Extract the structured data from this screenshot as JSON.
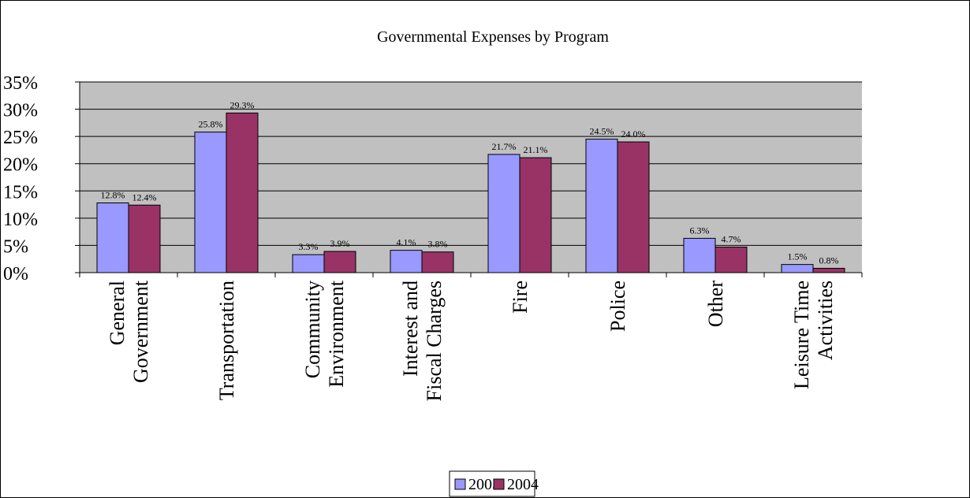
{
  "chart_data": {
    "type": "bar",
    "title": "Governmental Expenses by Program",
    "xlabel": "",
    "ylabel": "",
    "ylim": [
      0,
      35
    ],
    "y_ticks": [
      "0%",
      "5%",
      "10%",
      "15%",
      "20%",
      "25%",
      "30%",
      "35%"
    ],
    "categories": [
      [
        "General",
        "Government"
      ],
      [
        "Transportation"
      ],
      [
        "Community",
        "Environment"
      ],
      [
        "Interest and",
        "Fiscal Charges"
      ],
      [
        "Fire"
      ],
      [
        "Police"
      ],
      [
        "Other"
      ],
      [
        "Leisure Time",
        "Activities"
      ]
    ],
    "series": [
      {
        "name": "2005",
        "values": [
          12.8,
          25.8,
          3.3,
          4.1,
          21.7,
          24.5,
          6.3,
          1.5
        ],
        "labels": [
          "12.8%",
          "25.8%",
          "3.3%",
          "4.1%",
          "21.7%",
          "24.5%",
          "6.3%",
          "1.5%"
        ]
      },
      {
        "name": "2004",
        "values": [
          12.4,
          29.3,
          3.9,
          3.8,
          21.1,
          24.0,
          4.7,
          0.8
        ],
        "labels": [
          "12.4%",
          "29.3%",
          "3.9%",
          "3.8%",
          "21.1%",
          "24.0%",
          "4.7%",
          "0.8%"
        ]
      }
    ],
    "colors": {
      "2005": "#9999ff",
      "2004": "#993366",
      "plot_background": "#c0c0c0",
      "gridline": "#000000"
    },
    "grid": true,
    "legend_position": "bottom"
  }
}
